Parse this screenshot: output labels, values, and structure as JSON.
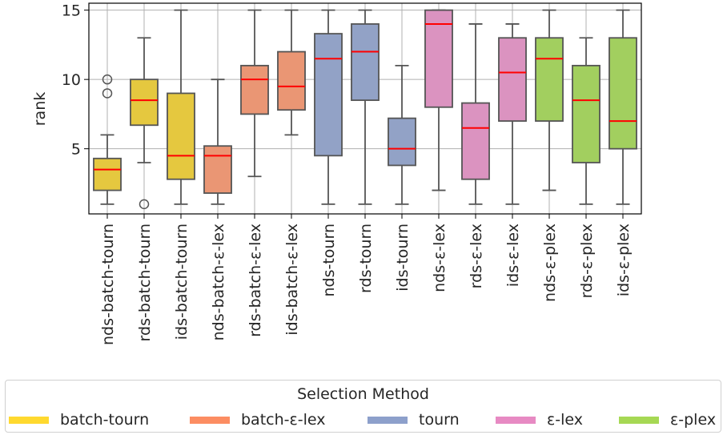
{
  "chart_data": {
    "type": "box",
    "ylabel": "rank",
    "xlabel": "",
    "ylim": [
      0.3,
      15.5
    ],
    "yticks": [
      5,
      10,
      15
    ],
    "grid": true,
    "categories": [
      "nds-batch-tourn",
      "rds-batch-tourn",
      "ids-batch-tourn",
      "nds-batch-ε-lex",
      "rds-batch-ε-lex",
      "ids-batch-ε-lex",
      "nds-tourn",
      "rds-tourn",
      "ids-tourn",
      "nds-ε-lex",
      "rds-ε-lex",
      "ids-ε-lex",
      "nds-ε-plex",
      "rds-ε-plex",
      "ids-ε-plex"
    ],
    "boxes": [
      {
        "method": "batch-tourn",
        "whislo": 1,
        "q1": 2,
        "median": 3.5,
        "q3": 4.3,
        "whishi": 6,
        "fliers": [
          9,
          10
        ]
      },
      {
        "method": "batch-tourn",
        "whislo": 4,
        "q1": 6.7,
        "median": 8.5,
        "q3": 10,
        "whishi": 13,
        "fliers": [
          1
        ]
      },
      {
        "method": "batch-tourn",
        "whislo": 1,
        "q1": 2.8,
        "median": 4.5,
        "q3": 9,
        "whishi": 15,
        "fliers": []
      },
      {
        "method": "batch-ε-lex",
        "whislo": 1,
        "q1": 1.8,
        "median": 4.5,
        "q3": 5.2,
        "whishi": 10,
        "fliers": []
      },
      {
        "method": "batch-ε-lex",
        "whislo": 3,
        "q1": 7.5,
        "median": 10,
        "q3": 11,
        "whishi": 15,
        "fliers": []
      },
      {
        "method": "batch-ε-lex",
        "whislo": 6,
        "q1": 7.8,
        "median": 9.5,
        "q3": 12,
        "whishi": 15,
        "fliers": []
      },
      {
        "method": "tourn",
        "whislo": 1,
        "q1": 4.5,
        "median": 11.5,
        "q3": 13.3,
        "whishi": 15,
        "fliers": []
      },
      {
        "method": "tourn",
        "whislo": 1,
        "q1": 8.5,
        "median": 12,
        "q3": 14,
        "whishi": 15,
        "fliers": []
      },
      {
        "method": "tourn",
        "whislo": 1,
        "q1": 3.8,
        "median": 5,
        "q3": 7.2,
        "whishi": 11,
        "fliers": []
      },
      {
        "method": "ε-lex",
        "whislo": 2,
        "q1": 8,
        "median": 14,
        "q3": 15,
        "whishi": 15,
        "fliers": []
      },
      {
        "method": "ε-lex",
        "whislo": 1,
        "q1": 2.8,
        "median": 6.5,
        "q3": 8.3,
        "whishi": 14,
        "fliers": []
      },
      {
        "method": "ε-lex",
        "whislo": 1,
        "q1": 7,
        "median": 10.5,
        "q3": 13,
        "whishi": 14,
        "fliers": []
      },
      {
        "method": "ε-plex",
        "whislo": 2,
        "q1": 7,
        "median": 11.5,
        "q3": 13,
        "whishi": 15,
        "fliers": []
      },
      {
        "method": "ε-plex",
        "whislo": 1,
        "q1": 4,
        "median": 8.5,
        "q3": 11,
        "whishi": 13,
        "fliers": []
      },
      {
        "method": "ε-plex",
        "whislo": 1,
        "q1": 5,
        "median": 7,
        "q3": 13,
        "whishi": 15,
        "fliers": []
      }
    ],
    "legend": {
      "title": "Selection Method",
      "placement": "bottom",
      "entries": [
        {
          "label": "batch-tourn",
          "color": "#ffd92f",
          "box_color": "#e5c83f"
        },
        {
          "label": "batch-ε-lex",
          "color": "#fc8d62",
          "box_color": "#ea9674"
        },
        {
          "label": "tourn",
          "color": "#8da0cb",
          "box_color": "#92a2c6"
        },
        {
          "label": "ε-lex",
          "color": "#e78ac3",
          "box_color": "#db93c0"
        },
        {
          "label": "ε-plex",
          "color": "#a6d854",
          "box_color": "#a2cf5f"
        }
      ]
    },
    "median_color": "#ff0000",
    "line_color": "#555555"
  }
}
